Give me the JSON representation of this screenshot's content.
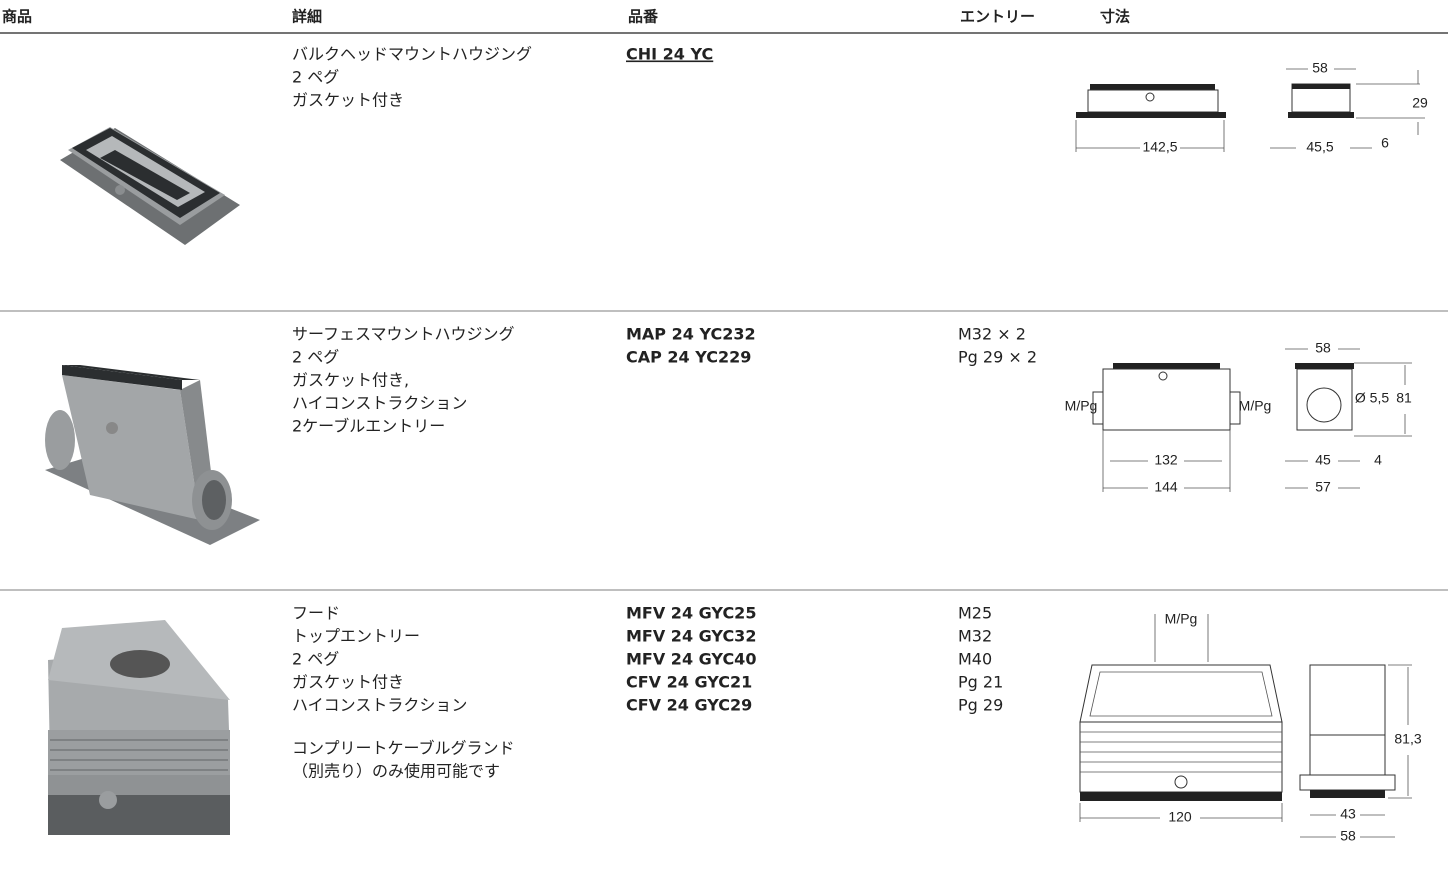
{
  "header": {
    "columns": [
      "商品",
      "詳細",
      "品番",
      "エントリー",
      "寸法"
    ]
  },
  "rows": [
    {
      "details": [
        "バルクヘッドマウントハウジング",
        "2 ペグ",
        "ガスケット付き"
      ],
      "part_numbers": [
        "CHI 24 YC"
      ],
      "entries": [],
      "dimensions": [
        "58",
        "29",
        "142,5",
        "45,5",
        "6"
      ]
    },
    {
      "details": [
        "サーフェスマウントハウジング",
        "2 ペグ",
        "ガスケット付き,",
        "ハイコンストラクション",
        "2ケーブルエントリー"
      ],
      "part_numbers": [
        "MAP 24 YC232",
        "CAP 24 YC229"
      ],
      "entries": [
        "M32 × 2",
        "Pg 29 × 2"
      ],
      "dimensions": [
        "58",
        "M/Pg",
        "M/Pg",
        "Ø 5,5",
        "81",
        "132",
        "144",
        "45",
        "4",
        "57"
      ]
    },
    {
      "details": [
        "フード",
        "トップエントリー",
        "2 ペグ",
        "ガスケット付き",
        "ハイコンストラクション",
        "コンプリートケーブルグランド",
        "（別売り）のみ使用可能です"
      ],
      "part_numbers": [
        "MFV 24 GYC25",
        "MFV 24 GYC32",
        "MFV 24 GYC40",
        "CFV 24 GYC21",
        "CFV 24 GYC29"
      ],
      "entries": [
        "M25",
        "M32",
        "M40",
        "Pg 21",
        "Pg 29"
      ],
      "dimensions": [
        "M/Pg",
        "81,3",
        "120",
        "43",
        "58"
      ]
    }
  ]
}
